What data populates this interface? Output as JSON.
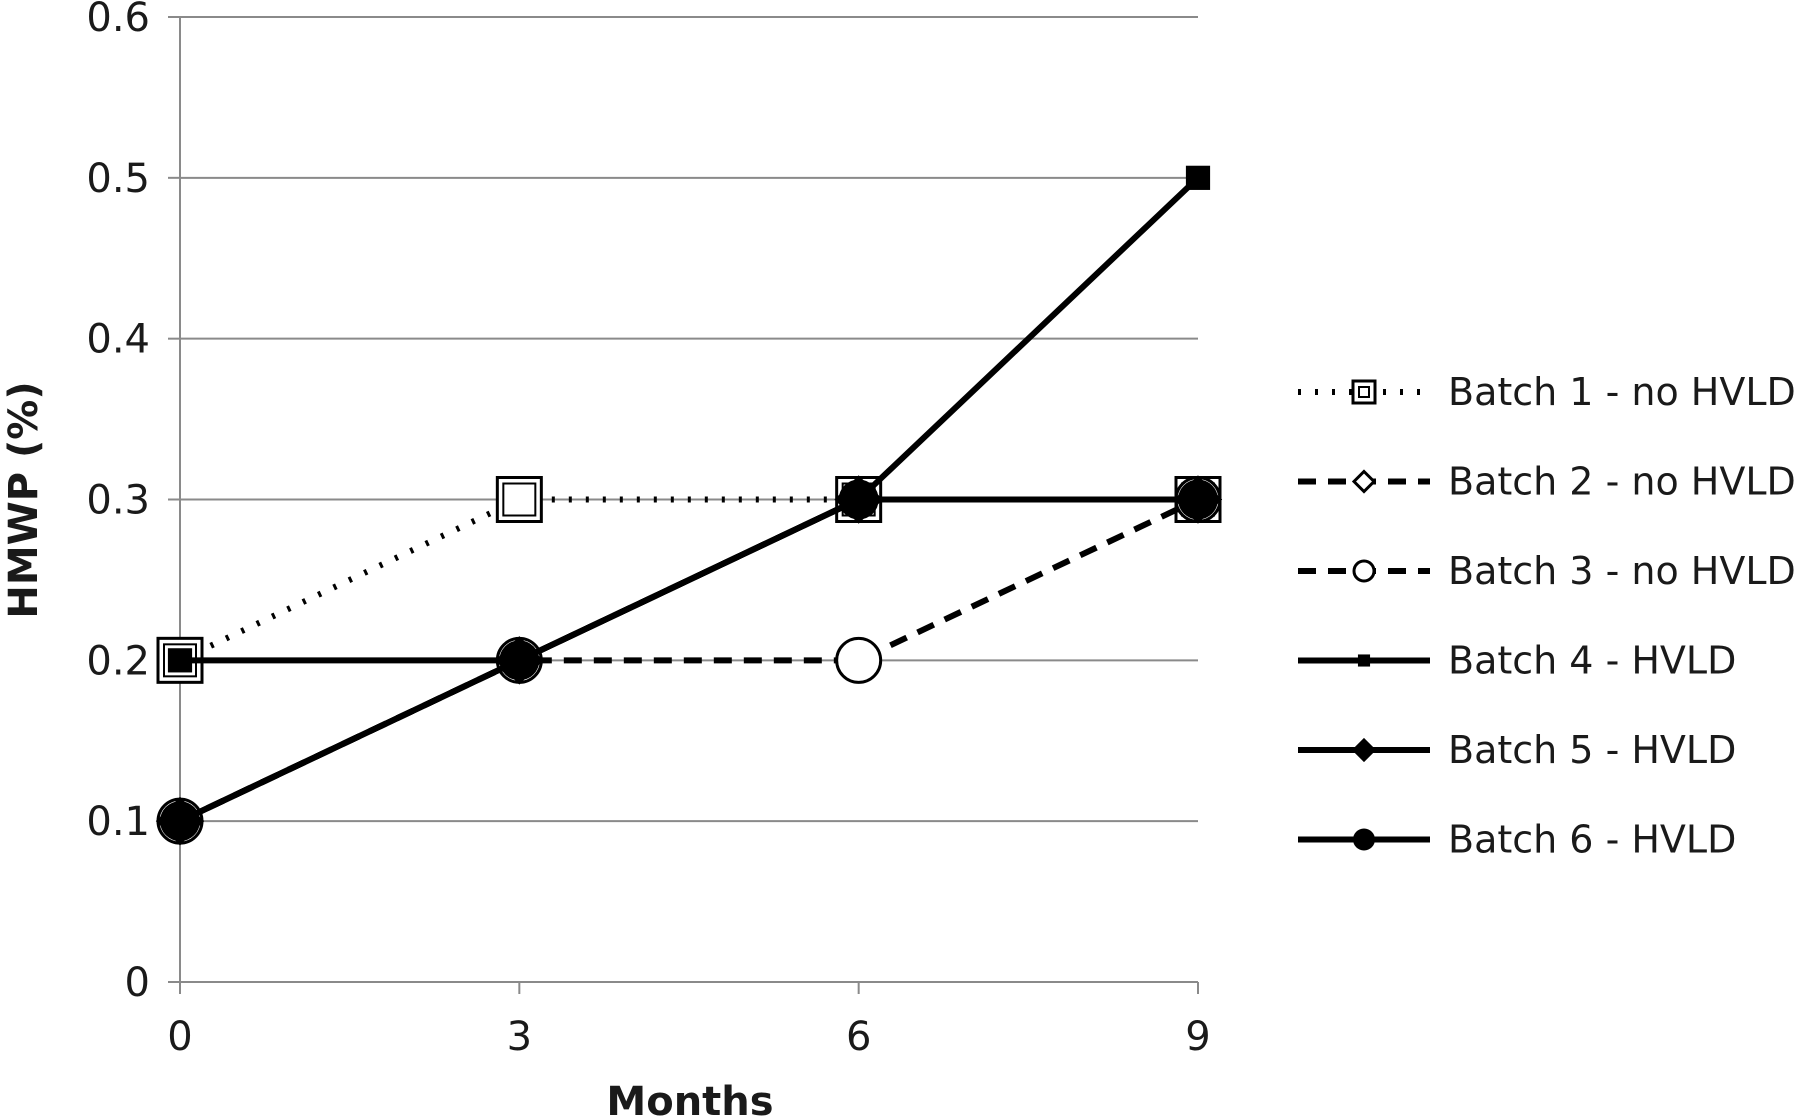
{
  "chart_data": {
    "type": "line",
    "title": "",
    "xlabel": "Months",
    "ylabel": "HMWP (%)",
    "x": [
      0,
      3,
      6,
      9
    ],
    "xlim": [
      0,
      9
    ],
    "ylim": [
      0,
      0.6
    ],
    "xticks": [
      "0",
      "3",
      "6",
      "9"
    ],
    "yticks": [
      "0",
      "0.1",
      "0.2",
      "0.3",
      "0.4",
      "0.5",
      "0.6"
    ],
    "grid": "horizontal",
    "legend_position": "right",
    "series": [
      {
        "name": "Batch 1 - no HVLD",
        "values": [
          0.2,
          0.3,
          0.3,
          0.3
        ],
        "line": "dotted",
        "marker": "square-open",
        "color": "#000000"
      },
      {
        "name": "Batch 2 - no HVLD",
        "values": [
          0.1,
          0.2,
          0.3,
          0.3
        ],
        "line": "dashed",
        "marker": "diamond-open",
        "color": "#000000"
      },
      {
        "name": "Batch 3 - no HVLD",
        "values": [
          0.1,
          0.2,
          0.2,
          0.3
        ],
        "line": "dashed",
        "marker": "circle-open",
        "color": "#000000"
      },
      {
        "name": "Batch 4 - HVLD",
        "values": [
          0.2,
          0.2,
          0.3,
          0.5
        ],
        "line": "solid",
        "marker": "square-filled",
        "color": "#000000"
      },
      {
        "name": "Batch 5 - HVLD",
        "values": [
          0.1,
          0.2,
          0.3,
          0.3
        ],
        "line": "solid",
        "marker": "diamond-filled",
        "color": "#000000"
      },
      {
        "name": "Batch 6 - HVLD",
        "values": [
          0.1,
          0.2,
          0.3,
          0.3
        ],
        "line": "solid",
        "marker": "circle-filled",
        "color": "#000000"
      }
    ]
  }
}
